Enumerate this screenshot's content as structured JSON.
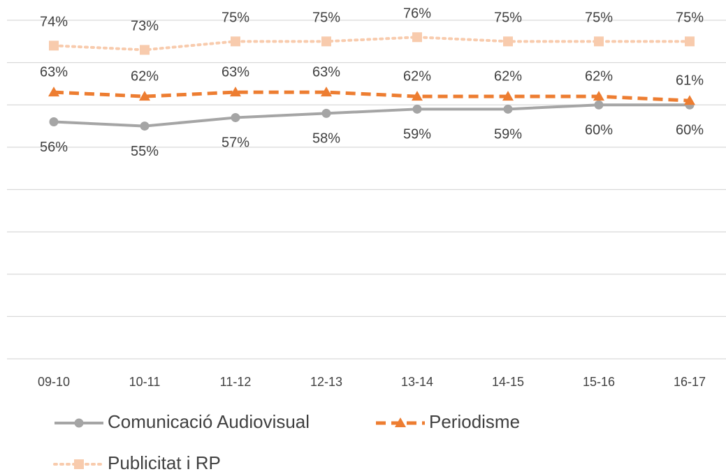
{
  "chart_data": {
    "type": "line",
    "categories": [
      "09-10",
      "10-11",
      "11-12",
      "12-13",
      "13-14",
      "14-15",
      "15-16",
      "16-17"
    ],
    "ylim": [
      0,
      80
    ],
    "yticks": [
      0,
      10,
      20,
      30,
      40,
      50,
      60,
      70,
      80
    ],
    "grid": true,
    "series": [
      {
        "name": "Comunicació Audiovisual",
        "color": "#a5a5a5",
        "marker": "circle",
        "dash": "solid",
        "values": [
          56,
          55,
          57,
          58,
          59,
          59,
          60,
          60
        ],
        "value_labels": [
          "56%",
          "55%",
          "57%",
          "58%",
          "59%",
          "59%",
          "60%",
          "60%"
        ]
      },
      {
        "name": "Periodisme",
        "color": "#ed7d31",
        "marker": "triangle",
        "dash": "dashed",
        "values": [
          63,
          62,
          63,
          63,
          62,
          62,
          62,
          61
        ],
        "value_labels": [
          "63%",
          "62%",
          "63%",
          "63%",
          "62%",
          "62%",
          "62%",
          "61%"
        ]
      },
      {
        "name": "Publicitat i RP",
        "color": "#f8cbad",
        "marker": "square",
        "dash": "dotted",
        "values": [
          74,
          73,
          75,
          75,
          76,
          75,
          75,
          75
        ],
        "value_labels": [
          "74%",
          "73%",
          "75%",
          "75%",
          "76%",
          "75%",
          "75%",
          "75%"
        ]
      }
    ]
  }
}
